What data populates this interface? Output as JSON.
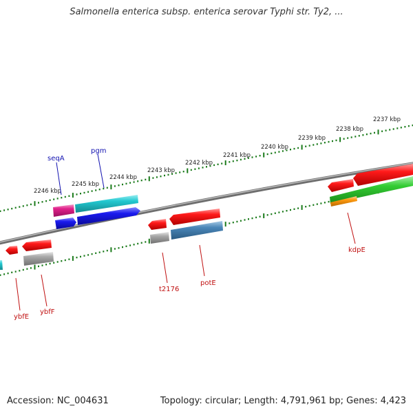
{
  "title": "Salmonella enterica subsp. enterica serovar Typhi str. Ty2, ...",
  "footer": {
    "accession": "Accession: NC_004631",
    "summary": "Topology: circular; Length: 4,791,961 bp; Genes: 4,423"
  },
  "colors": {
    "backbone": "#8a8a8a",
    "tick": "#1a7a1a",
    "plus_label": "#1010b0",
    "minus_label": "#c01010",
    "red": "#ff1a1a",
    "magenta": "#e0208a",
    "cyan": "#22c8d0",
    "blue": "#1a1aee",
    "gray": "#a8a8a8",
    "steelblue": "#4a86b8",
    "green": "#33cc33",
    "orange": "#ff9a10"
  },
  "scale_labels": [
    "2246 kbp",
    "2245 kbp",
    "2244 kbp",
    "2243 kbp",
    "2242 kbp",
    "2241 kbp",
    "2240 kbp",
    "2239 kbp",
    "2238 kbp",
    "2237 kbp"
  ],
  "gene_labels": [
    {
      "text": "seqA",
      "strand": "plus"
    },
    {
      "text": "pgm",
      "strand": "plus"
    },
    {
      "text": "ybfE",
      "strand": "minus"
    },
    {
      "text": "ybfF",
      "strand": "minus"
    },
    {
      "text": "t2176",
      "strand": "minus"
    },
    {
      "text": "potE",
      "strand": "minus"
    },
    {
      "text": "kdpE",
      "strand": "minus"
    }
  ]
}
